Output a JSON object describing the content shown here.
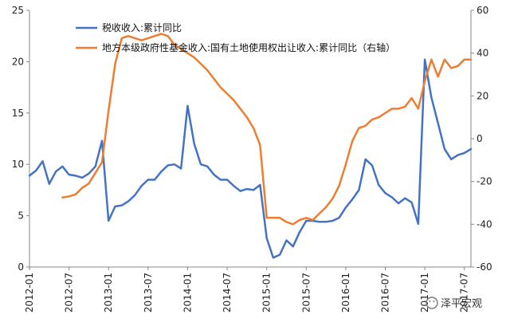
{
  "chart_data": {
    "type": "line",
    "title": "",
    "xlabel": "",
    "ylabel_left": "",
    "ylabel_right": "",
    "x_tick_labels": [
      "2012-01",
      "2012-07",
      "2013-01",
      "2013-07",
      "2014-01",
      "2014-07",
      "2015-01",
      "2015-07",
      "2016-01",
      "2016-07",
      "2017-01",
      "2017-07"
    ],
    "x_range_months": [
      0,
      67
    ],
    "y_left": {
      "min": 0,
      "max": 25,
      "ticks": [
        0,
        5,
        10,
        15,
        20,
        25
      ]
    },
    "y_right": {
      "min": -60,
      "max": 60,
      "ticks": [
        -60,
        -40,
        -20,
        0,
        20,
        40,
        60
      ]
    },
    "series": [
      {
        "name": "税收收入:累计同比",
        "axis": "left",
        "color": "#4472C4",
        "points": [
          [
            0,
            8.9
          ],
          [
            1,
            9.4
          ],
          [
            2,
            10.3
          ],
          [
            3,
            8.1
          ],
          [
            4,
            9.3
          ],
          [
            5,
            9.8
          ],
          [
            6,
            9.0
          ],
          [
            7,
            8.9
          ],
          [
            8,
            8.7
          ],
          [
            9,
            9.1
          ],
          [
            10,
            9.8
          ],
          [
            11,
            12.3
          ],
          [
            12,
            4.5
          ],
          [
            13,
            5.9
          ],
          [
            14,
            6.0
          ],
          [
            15,
            6.4
          ],
          [
            16,
            7.0
          ],
          [
            17,
            7.9
          ],
          [
            18,
            8.5
          ],
          [
            19,
            8.5
          ],
          [
            20,
            9.3
          ],
          [
            21,
            9.9
          ],
          [
            22,
            10.0
          ],
          [
            23,
            9.6
          ],
          [
            24,
            15.7
          ],
          [
            25,
            12.0
          ],
          [
            26,
            10.0
          ],
          [
            27,
            9.8
          ],
          [
            28,
            9.0
          ],
          [
            29,
            8.5
          ],
          [
            30,
            8.5
          ],
          [
            31,
            7.9
          ],
          [
            32,
            7.4
          ],
          [
            33,
            7.6
          ],
          [
            34,
            7.5
          ],
          [
            35,
            8.0
          ],
          [
            36,
            2.8
          ],
          [
            37,
            0.9
          ],
          [
            38,
            1.2
          ],
          [
            39,
            2.6
          ],
          [
            40,
            2.0
          ],
          [
            41,
            3.4
          ],
          [
            42,
            4.5
          ],
          [
            43,
            4.5
          ],
          [
            44,
            4.4
          ],
          [
            45,
            4.4
          ],
          [
            46,
            4.5
          ],
          [
            47,
            4.8
          ],
          [
            48,
            5.8
          ],
          [
            49,
            6.6
          ],
          [
            50,
            7.5
          ],
          [
            51,
            10.5
          ],
          [
            52,
            9.9
          ],
          [
            53,
            8.0
          ],
          [
            54,
            7.2
          ],
          [
            55,
            6.8
          ],
          [
            56,
            6.2
          ],
          [
            57,
            6.7
          ],
          [
            58,
            6.3
          ],
          [
            59,
            4.2
          ],
          [
            60,
            20.2
          ],
          [
            61,
            16.5
          ],
          [
            62,
            14.0
          ],
          [
            63,
            11.5
          ],
          [
            64,
            10.5
          ],
          [
            65,
            10.9
          ],
          [
            66,
            11.1
          ],
          [
            67,
            11.5
          ]
        ]
      },
      {
        "name": "地方本级政府性基金收入:国有土地使用权出让收入:累计同比（右轴）",
        "axis": "right",
        "color": "#ED7D31",
        "points": [
          [
            5,
            -27.5
          ],
          [
            6,
            -27
          ],
          [
            7,
            -26
          ],
          [
            8,
            -23
          ],
          [
            9,
            -21
          ],
          [
            10,
            -16
          ],
          [
            11,
            -11
          ],
          [
            12,
            13
          ],
          [
            13,
            35
          ],
          [
            14,
            47
          ],
          [
            15,
            48
          ],
          [
            16,
            47
          ],
          [
            17,
            46
          ],
          [
            18,
            47
          ],
          [
            19,
            48
          ],
          [
            20,
            49
          ],
          [
            21,
            48
          ],
          [
            22,
            44
          ],
          [
            23,
            42
          ],
          [
            24,
            40
          ],
          [
            25,
            38
          ],
          [
            26,
            35
          ],
          [
            27,
            32
          ],
          [
            28,
            28
          ],
          [
            29,
            24
          ],
          [
            30,
            21
          ],
          [
            31,
            18
          ],
          [
            32,
            14
          ],
          [
            33,
            10
          ],
          [
            34,
            5
          ],
          [
            35,
            -3
          ],
          [
            36,
            -37
          ],
          [
            37,
            -37
          ],
          [
            38,
            -37
          ],
          [
            39,
            -39
          ],
          [
            40,
            -40
          ],
          [
            41,
            -38
          ],
          [
            42,
            -37
          ],
          [
            43,
            -38
          ],
          [
            44,
            -35
          ],
          [
            45,
            -32
          ],
          [
            46,
            -28
          ],
          [
            47,
            -22
          ],
          [
            48,
            -12
          ],
          [
            49,
            -1
          ],
          [
            50,
            5
          ],
          [
            51,
            6
          ],
          [
            52,
            9
          ],
          [
            53,
            10
          ],
          [
            54,
            12
          ],
          [
            55,
            14
          ],
          [
            56,
            14
          ],
          [
            57,
            15
          ],
          [
            58,
            19
          ],
          [
            59,
            14
          ],
          [
            60,
            27
          ],
          [
            61,
            37
          ],
          [
            62,
            29
          ],
          [
            63,
            37
          ],
          [
            64,
            33
          ],
          [
            65,
            34
          ],
          [
            66,
            37
          ],
          [
            67,
            37
          ]
        ]
      }
    ]
  },
  "legend": {
    "items": [
      {
        "label": "税收收入:累计同比",
        "color": "#4472C4"
      },
      {
        "label": "地方本级政府性基金收入:国有土地使用权出让收入:累计同比（右轴）",
        "color": "#ED7D31"
      }
    ]
  },
  "watermark": {
    "text": "泽平宏观"
  }
}
